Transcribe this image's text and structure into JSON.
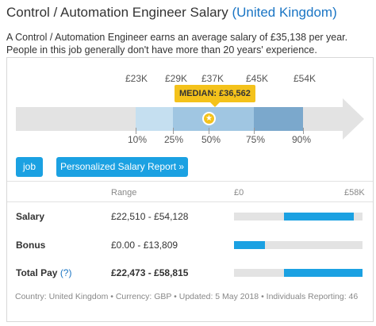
{
  "header": {
    "title": "Control / Automation Engineer Salary",
    "location": "(United Kingdom)"
  },
  "description": "A Control / Automation Engineer earns an average salary of £35,138 per year. People in this job generally don't have more than 20 years' experience.",
  "distribution": {
    "median_label": "MEDIAN: £36,562",
    "median_value": 36562,
    "star_icon": "★",
    "salary_marks": [
      {
        "label": "£23K",
        "value": 23000
      },
      {
        "label": "£29K",
        "value": 29000
      },
      {
        "label": "£37K",
        "value": 37000
      },
      {
        "label": "£45K",
        "value": 45000
      },
      {
        "label": "£54K",
        "value": 54000
      }
    ],
    "percentile_marks": [
      "10%",
      "25%",
      "50%",
      "75%",
      "90%"
    ],
    "segment_colors": [
      "#c5dff0",
      "#a0c6e2",
      "#7ba8cc"
    ]
  },
  "buttons": {
    "job": "job",
    "report": "Personalized Salary Report »"
  },
  "table": {
    "range_header": "Range",
    "axis_min_label": "£0",
    "axis_max_label": "£58K",
    "axis_max": 58000,
    "rows": [
      {
        "label": "Salary",
        "help": "",
        "range": "£22,510 - £54,128",
        "min": 22510,
        "max": 54128,
        "bold": false
      },
      {
        "label": "Bonus",
        "help": "",
        "range": "£0.00 - £13,809",
        "min": 0,
        "max": 13809,
        "bold": false
      },
      {
        "label": "Total Pay",
        "help": "(?)",
        "range": "£22,473 - £58,815",
        "min": 22473,
        "max": 58815,
        "bold": true
      }
    ]
  },
  "footer": "Country: United Kingdom • Currency: GBP • Updated: 5 May 2018 • Individuals Reporting: 46",
  "colors": {
    "accent": "#1ba1e2",
    "link": "#1a75c4",
    "median": "#f4c21b"
  }
}
